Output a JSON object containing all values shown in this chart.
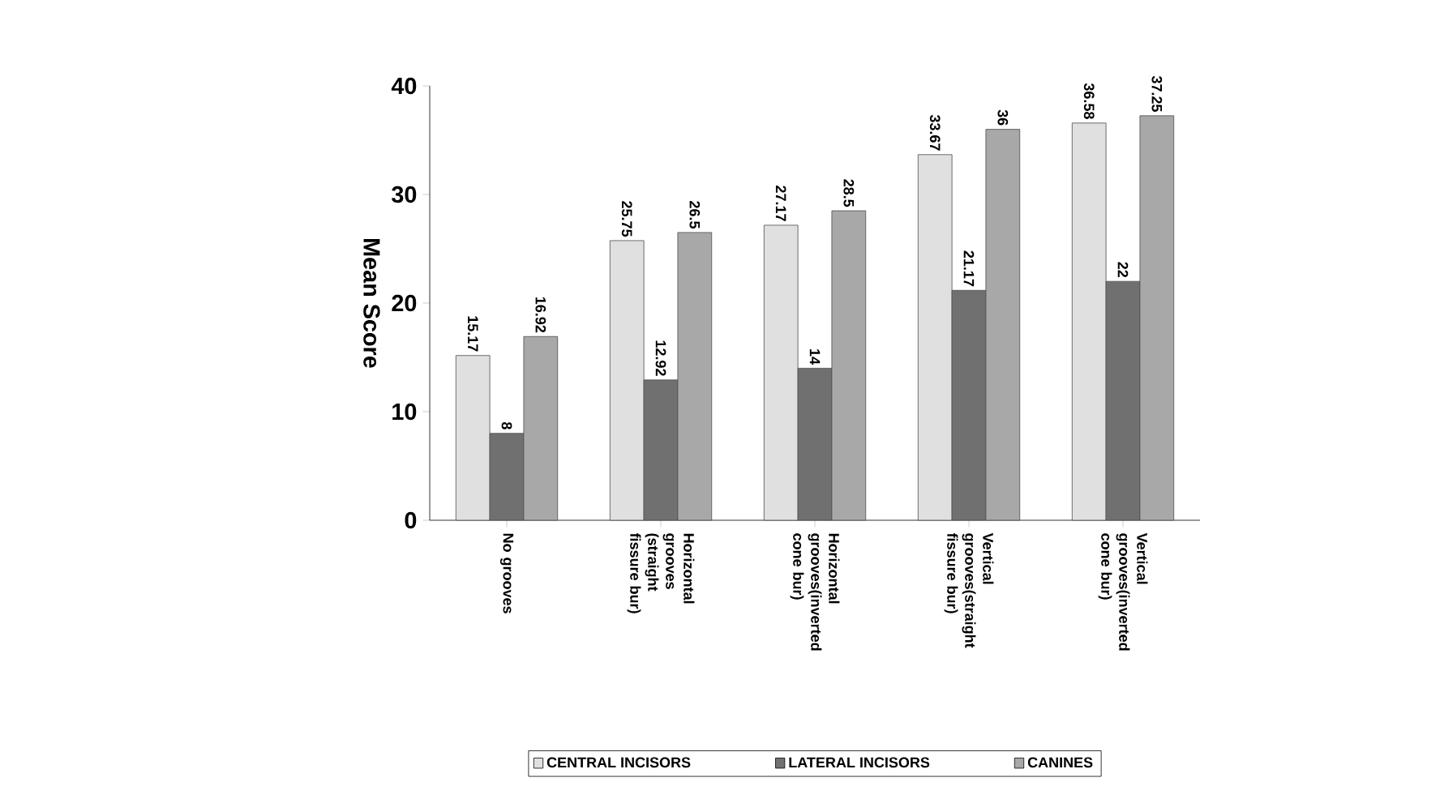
{
  "chart_data": {
    "type": "bar",
    "ylabel": "Mean Score",
    "categories": [
      "No grooves",
      "Horizontal grooves (straight fissure bur)",
      "Horizontal grooves(inverted cone bur)",
      "Vertical grooves(straight fissure bur)",
      "Vertical grooves(inverted cone bur)"
    ],
    "series": [
      {
        "name": "CENTRAL INCISORS",
        "color": "#e0e0e0",
        "values": [
          15.17,
          25.75,
          27.17,
          33.67,
          36.58
        ],
        "value_labels": [
          "15.17",
          "25.75",
          "27.17",
          "33.67",
          "36.58"
        ]
      },
      {
        "name": "LATERAL INCISORS",
        "color": "#707070",
        "values": [
          8,
          12.92,
          14,
          21.17,
          22
        ],
        "value_labels": [
          "8",
          "12.92",
          "14",
          "21.17",
          "22"
        ]
      },
      {
        "name": "CANINES",
        "color": "#a8a8a8",
        "values": [
          16.92,
          26.5,
          28.5,
          36,
          37.25
        ],
        "value_labels": [
          "16.92",
          "26.5",
          "28.5",
          "36",
          "37.25"
        ]
      }
    ],
    "ylim": [
      0,
      40
    ],
    "yticks": [
      0,
      10,
      20,
      30,
      40
    ],
    "grid": false,
    "legend": "bottom"
  }
}
